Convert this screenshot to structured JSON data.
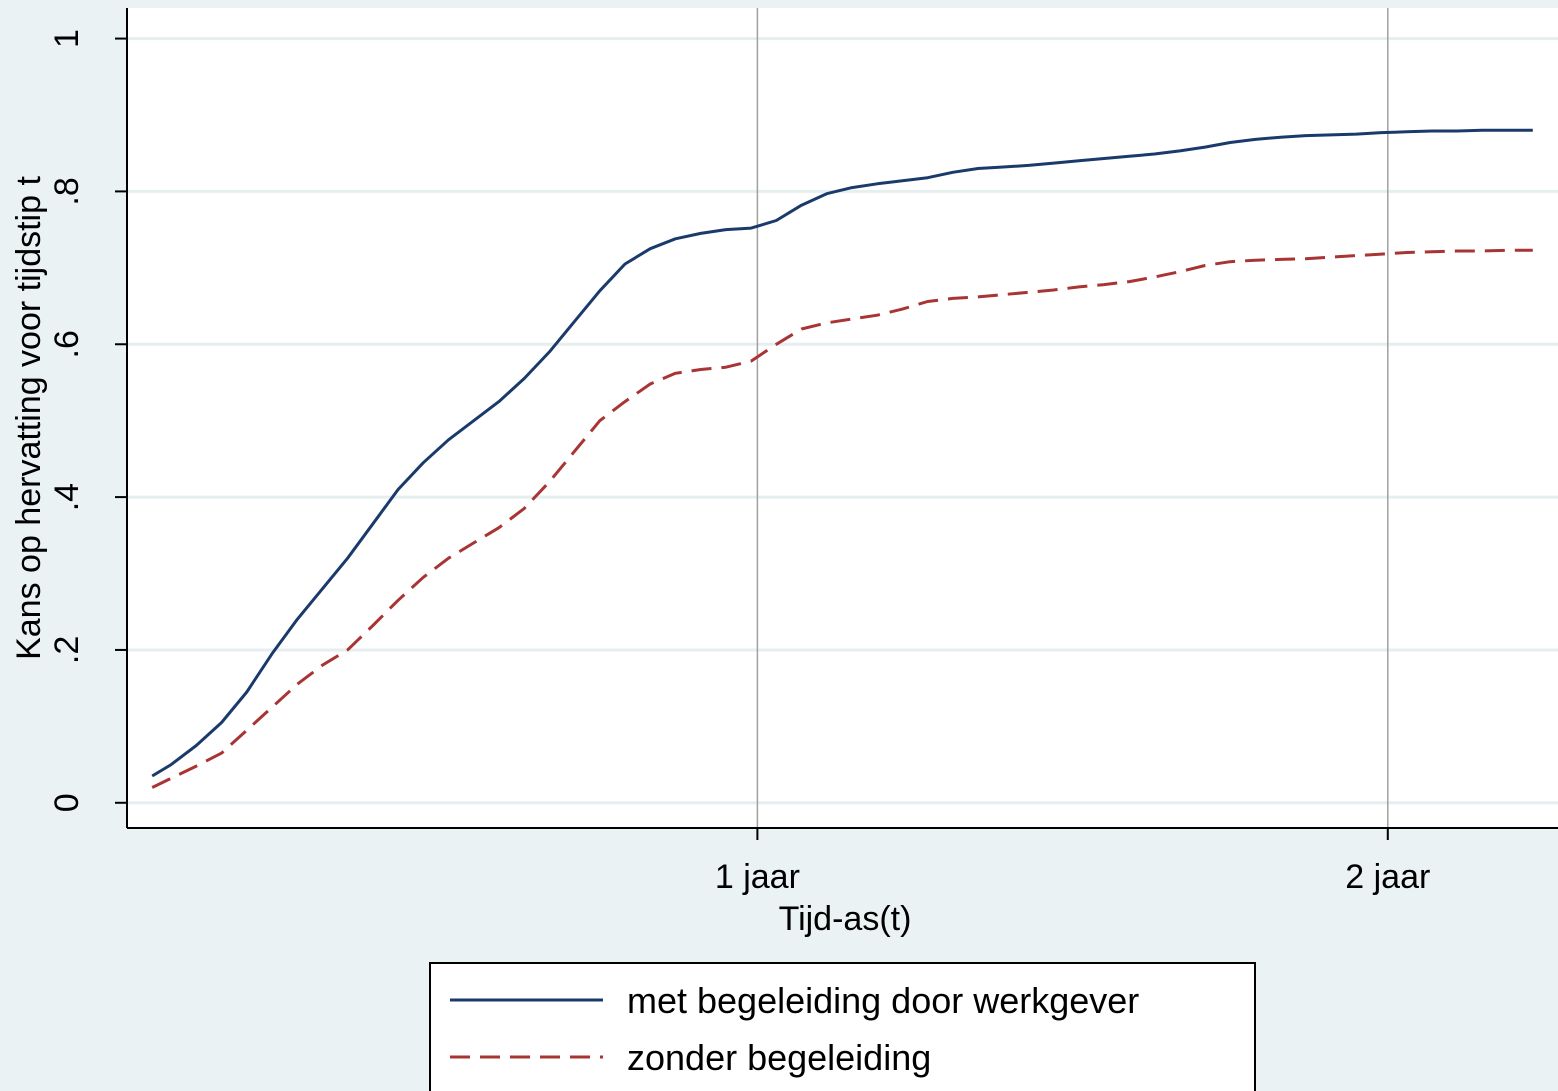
{
  "chart_data": {
    "type": "line",
    "title": "",
    "xlabel": "Tijd-as(t)",
    "ylabel": "Kans op hervatting voor tijdstip t",
    "xlim": [
      0.0,
      2.27
    ],
    "ylim": [
      -0.033,
      1.04
    ],
    "y_ticks": [
      {
        "value": 0,
        "label": "0"
      },
      {
        "value": 0.2,
        "label": ".2"
      },
      {
        "value": 0.4,
        "label": ".4"
      },
      {
        "value": 0.6,
        "label": ".6"
      },
      {
        "value": 0.8,
        "label": ".8"
      },
      {
        "value": 1,
        "label": "1"
      }
    ],
    "x_ticks": [
      {
        "value": 1,
        "label": "1 jaar"
      },
      {
        "value": 2,
        "label": "2 jaar"
      }
    ],
    "grid": true,
    "legend_position": "bottom",
    "series": [
      {
        "name": "met begeleiding door werkgever",
        "color": "#1a3a6b",
        "style": "solid",
        "x": [
          0.04,
          0.07,
          0.11,
          0.15,
          0.19,
          0.23,
          0.27,
          0.31,
          0.35,
          0.39,
          0.43,
          0.47,
          0.51,
          0.55,
          0.59,
          0.63,
          0.67,
          0.71,
          0.75,
          0.79,
          0.83,
          0.87,
          0.91,
          0.95,
          0.99,
          1.03,
          1.07,
          1.11,
          1.15,
          1.19,
          1.23,
          1.27,
          1.31,
          1.35,
          1.39,
          1.43,
          1.47,
          1.51,
          1.55,
          1.59,
          1.63,
          1.67,
          1.71,
          1.75,
          1.79,
          1.83,
          1.87,
          1.91,
          1.95,
          1.99,
          2.03,
          2.07,
          2.11,
          2.15,
          2.19,
          2.23
        ],
        "y": [
          0.035,
          0.05,
          0.075,
          0.105,
          0.145,
          0.195,
          0.24,
          0.28,
          0.32,
          0.365,
          0.41,
          0.445,
          0.475,
          0.5,
          0.525,
          0.555,
          0.59,
          0.63,
          0.67,
          0.705,
          0.725,
          0.738,
          0.745,
          0.75,
          0.752,
          0.762,
          0.782,
          0.797,
          0.805,
          0.81,
          0.814,
          0.818,
          0.825,
          0.83,
          0.832,
          0.834,
          0.837,
          0.84,
          0.843,
          0.846,
          0.849,
          0.853,
          0.858,
          0.864,
          0.868,
          0.871,
          0.873,
          0.874,
          0.875,
          0.877,
          0.878,
          0.879,
          0.879,
          0.88,
          0.88,
          0.88
        ]
      },
      {
        "name": "zonder begeleiding",
        "color": "#a83434",
        "style": "dashed",
        "x": [
          0.04,
          0.07,
          0.11,
          0.15,
          0.19,
          0.23,
          0.27,
          0.31,
          0.35,
          0.39,
          0.43,
          0.47,
          0.51,
          0.55,
          0.59,
          0.63,
          0.67,
          0.71,
          0.75,
          0.79,
          0.83,
          0.87,
          0.91,
          0.95,
          0.99,
          1.03,
          1.07,
          1.11,
          1.15,
          1.19,
          1.23,
          1.27,
          1.31,
          1.35,
          1.39,
          1.43,
          1.47,
          1.51,
          1.55,
          1.59,
          1.63,
          1.67,
          1.71,
          1.75,
          1.79,
          1.83,
          1.87,
          1.91,
          1.95,
          1.99,
          2.03,
          2.07,
          2.11,
          2.15,
          2.19,
          2.23
        ],
        "y": [
          0.02,
          0.032,
          0.048,
          0.065,
          0.095,
          0.125,
          0.155,
          0.18,
          0.2,
          0.232,
          0.265,
          0.295,
          0.32,
          0.34,
          0.36,
          0.385,
          0.42,
          0.46,
          0.5,
          0.525,
          0.548,
          0.562,
          0.567,
          0.57,
          0.578,
          0.6,
          0.62,
          0.628,
          0.633,
          0.638,
          0.646,
          0.656,
          0.66,
          0.662,
          0.665,
          0.668,
          0.671,
          0.675,
          0.678,
          0.682,
          0.688,
          0.695,
          0.703,
          0.708,
          0.71,
          0.711,
          0.712,
          0.714,
          0.716,
          0.718,
          0.72,
          0.721,
          0.722,
          0.722,
          0.723,
          0.723
        ]
      }
    ]
  }
}
